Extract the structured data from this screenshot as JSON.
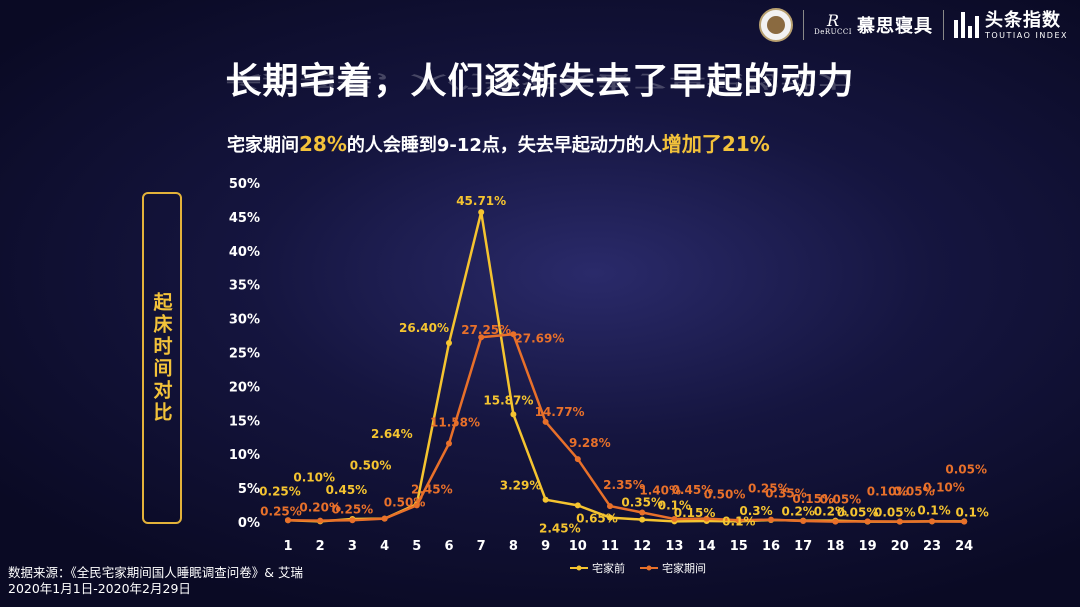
{
  "title": "长期宅着，人们逐渐失去了早起的动力",
  "subtitle": {
    "p1": "宅家期间",
    "h1": "28%",
    "p2": "的人会睡到9-12点，失去早起动力的人",
    "h2": "增加了21%"
  },
  "side_label": "起床时间对比",
  "source": {
    "line1": "数据来源：《全民宅家期间国人睡眠调查问卷》& 艾瑞",
    "line2": "2020年1月1日-2020年2月29日"
  },
  "logos": {
    "derucci_mark": "DeRUCCI",
    "derucci_cn": "慕思寝具",
    "toutiao_cn": "头条指数",
    "toutiao_en": "TOUTIAO INDEX"
  },
  "colors": {
    "before": "#f5c430",
    "during": "#e8702a"
  },
  "chart_data": {
    "type": "line",
    "title": "",
    "xlabel": "",
    "ylabel": "",
    "ylim": [
      0,
      50
    ],
    "yticks": [
      "0%",
      "5%",
      "10%",
      "15%",
      "20%",
      "25%",
      "30%",
      "35%",
      "40%",
      "45%",
      "50%"
    ],
    "categories": [
      "1",
      "2",
      "3",
      "4",
      "5",
      "6",
      "7",
      "8",
      "9",
      "10",
      "11",
      "12",
      "13",
      "14",
      "15",
      "16",
      "17",
      "18",
      "19",
      "20",
      "23",
      "24"
    ],
    "legend_position": "bottom-right",
    "grid": false,
    "series": [
      {
        "name": "宅家前",
        "values": [
          0.25,
          0.1,
          0.45,
          0.5,
          2.64,
          26.4,
          45.71,
          15.87,
          3.29,
          2.45,
          0.65,
          0.35,
          0.1,
          0.15,
          0.1,
          0.3,
          0.2,
          0.2,
          0.05,
          0.05,
          0.1,
          0.1
        ],
        "labels": [
          "0.25%",
          "0.10%",
          "0.45%",
          "0.50%",
          "2.64%",
          "26.40%",
          "45.71%",
          "15.87%",
          "3.29%",
          "2.45%",
          "0.65%",
          "0.35%",
          "0.1%",
          "0.15%",
          "0.1%",
          "0.3%",
          "0.2%",
          "0.2%",
          "0.05%",
          "0.05%",
          "0.1%",
          "0.1%"
        ]
      },
      {
        "name": "宅家期间",
        "values": [
          0.25,
          0.2,
          0.25,
          0.5,
          2.45,
          11.58,
          27.25,
          27.69,
          14.77,
          9.28,
          2.35,
          1.4,
          0.45,
          0.5,
          0.25,
          0.35,
          0.15,
          0.05,
          0.1,
          0.05,
          0.1,
          0.05
        ],
        "labels": [
          "0.25%",
          "0.20%",
          "0.25%",
          "0.50%",
          "2.45%",
          "11.58%",
          "27.25%",
          "27.69%",
          "14.77%",
          "9.28%",
          "2.35%",
          "1.40%",
          "0.45%",
          "0.50%",
          "0.25%",
          "0.35%",
          "0.15%",
          "0.05%",
          "0.10%",
          "0.05%",
          "0.10%",
          "0.05%"
        ]
      }
    ]
  }
}
